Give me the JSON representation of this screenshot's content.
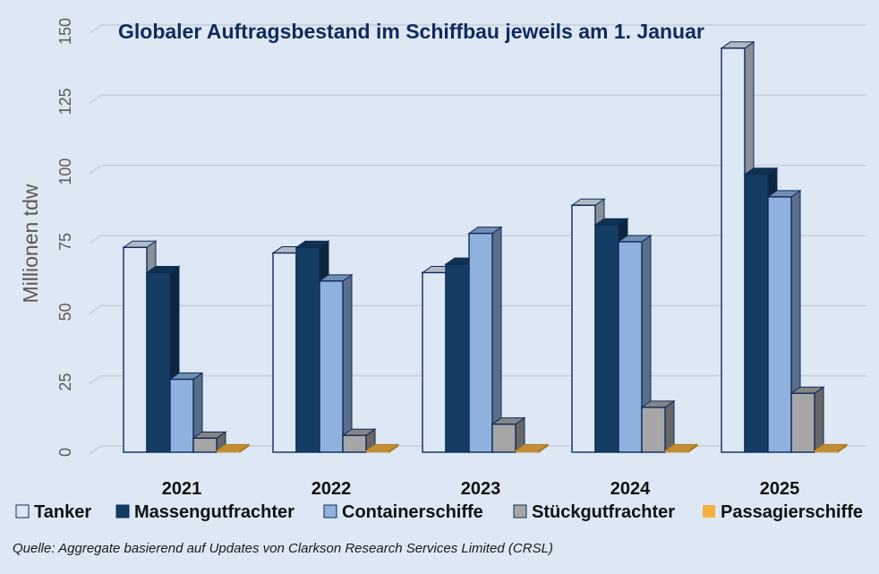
{
  "chart_data": {
    "type": "bar",
    "title": "Globaler Auftragsbestand im Schiffbau jeweils am 1. Januar",
    "ylabel": "Millionen tdw",
    "xlabel": "",
    "ylim": [
      0,
      150
    ],
    "yticks": [
      0,
      25,
      50,
      75,
      100,
      125,
      150
    ],
    "grid": true,
    "legend_position": "bottom",
    "categories": [
      "2021",
      "2022",
      "2023",
      "2024",
      "2025"
    ],
    "series": [
      {
        "name": "Tanker",
        "color": "#dce8f4",
        "values": [
          73,
          71,
          64,
          88,
          144
        ]
      },
      {
        "name": "Massengutfrachter",
        "color": "#143d63",
        "values": [
          64,
          73,
          67,
          81,
          99
        ]
      },
      {
        "name": "Containerschiffe",
        "color": "#8fb1de",
        "values": [
          26,
          61,
          78,
          75,
          91
        ]
      },
      {
        "name": "Stückgutfrachter",
        "color": "#a6a6a6",
        "values": [
          5,
          6,
          10,
          16,
          21
        ]
      },
      {
        "name": "Passagierschiffe",
        "color": "#f4b140",
        "values": [
          0.5,
          0.5,
          0.5,
          0.5,
          0.5
        ]
      }
    ]
  },
  "source_note": "Quelle: Aggregate basierend auf Updates von Clarkson Research Services Limited (CRSL)",
  "colors": {
    "background": "#dde8f4",
    "title": "#0f2a5c",
    "gridline": "#c8ced6",
    "axis_text": "#595959",
    "category_text": "#111111",
    "bar_outline": "#0f2a5c"
  }
}
